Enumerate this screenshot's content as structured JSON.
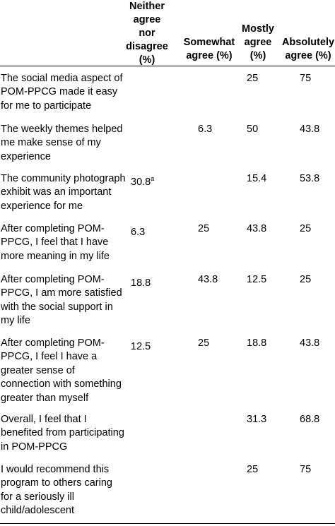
{
  "table": {
    "headers": [
      "",
      "Neither agree nor disagree (%)",
      "Somewhat agree (%)",
      "Mostly agree (%)",
      "Absolutely agree (%)"
    ],
    "header_lines": {
      "neither": "Neither\nagree\nnor\ndisagree\n(%)",
      "somewhat": "Somewhat\nagree (%)",
      "mostly": "Mostly\nagree\n(%)",
      "absolutely": "Absolutely\nagree (%)"
    },
    "rows": [
      {
        "statement": "The social media aspect of POM-PPCG made it easy for me to participate",
        "neither": "",
        "neither_note": "",
        "somewhat": "",
        "mostly": "25",
        "absolutely": "75"
      },
      {
        "statement": "The weekly themes helped me make sense of my experience",
        "neither": "",
        "neither_note": "",
        "somewhat": "6.3",
        "mostly": "50",
        "absolutely": "43.8"
      },
      {
        "statement": "The community photograph exhibit was an important experience for me",
        "neither": "30.8",
        "neither_note": "a",
        "somewhat": "",
        "mostly": "15.4",
        "absolutely": "53.8"
      },
      {
        "statement": "After completing POM-PPCG, I feel that I have more meaning in my life",
        "neither": "6.3",
        "neither_note": "",
        "somewhat": "25",
        "mostly": "43.8",
        "absolutely": "25"
      },
      {
        "statement": "After completing POM-PPCG, I am more satisfied with the social support in my life",
        "neither": "18.8",
        "neither_note": "",
        "somewhat": "43.8",
        "mostly": "12.5",
        "absolutely": "25"
      },
      {
        "statement": "After completing POM-PPCG, I feel I have a greater sense of connection with something greater than myself",
        "neither": "12.5",
        "neither_note": "",
        "somewhat": "25",
        "mostly": "18.8",
        "absolutely": "43.8"
      },
      {
        "statement": "Overall, I feel that I benefited from participating in POM-PPCG",
        "neither": "",
        "neither_note": "",
        "somewhat": "",
        "mostly": "31.3",
        "absolutely": "68.8"
      },
      {
        "statement": "I would recommend this program to others caring for a seriously ill child/adolescent",
        "neither": "",
        "neither_note": "",
        "somewhat": "",
        "mostly": "25",
        "absolutely": "75"
      }
    ]
  }
}
